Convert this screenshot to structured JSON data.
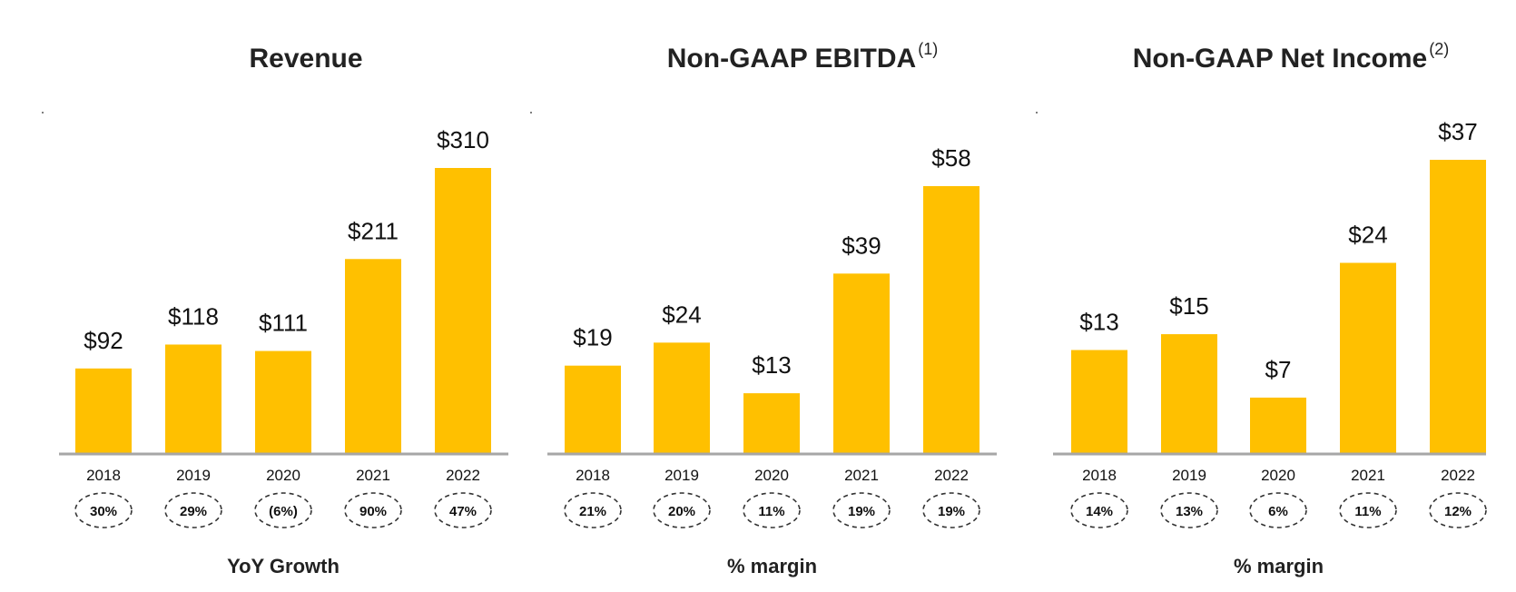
{
  "colors": {
    "bar": "#FFC000",
    "axis": "#A6A6A6",
    "ellipse": "#333333",
    "text": "#111111"
  },
  "chart_data": [
    {
      "type": "bar",
      "title": "Revenue",
      "superscript": "",
      "categories": [
        "2018",
        "2019",
        "2020",
        "2021",
        "2022"
      ],
      "values": [
        92,
        118,
        111,
        211,
        310
      ],
      "labels": [
        "$92",
        "$118",
        "$111",
        "$211",
        "$310"
      ],
      "sub_values": [
        "30%",
        "29%",
        "(6%)",
        "90%",
        "47%"
      ],
      "sub_label": "YoY Growth",
      "ylim": [
        0,
        310
      ]
    },
    {
      "type": "bar",
      "title": "Non-GAAP EBITDA",
      "superscript": "(1)",
      "categories": [
        "2018",
        "2019",
        "2020",
        "2021",
        "2022"
      ],
      "values": [
        19,
        24,
        13,
        39,
        58
      ],
      "labels": [
        "$19",
        "$24",
        "$13",
        "$39",
        "$58"
      ],
      "sub_values": [
        "21%",
        "20%",
        "11%",
        "19%",
        "19%"
      ],
      "sub_label": "% margin",
      "ylim": [
        0,
        58
      ]
    },
    {
      "type": "bar",
      "title": "Non-GAAP Net Income",
      "superscript": "(2)",
      "categories": [
        "2018",
        "2019",
        "2020",
        "2021",
        "2022"
      ],
      "values": [
        13,
        15,
        7,
        24,
        37
      ],
      "labels": [
        "$13",
        "$15",
        "$7",
        "$24",
        "$37"
      ],
      "sub_values": [
        "14%",
        "13%",
        "6%",
        "11%",
        "12%"
      ],
      "sub_label": "% margin",
      "ylim": [
        0,
        37
      ]
    }
  ]
}
